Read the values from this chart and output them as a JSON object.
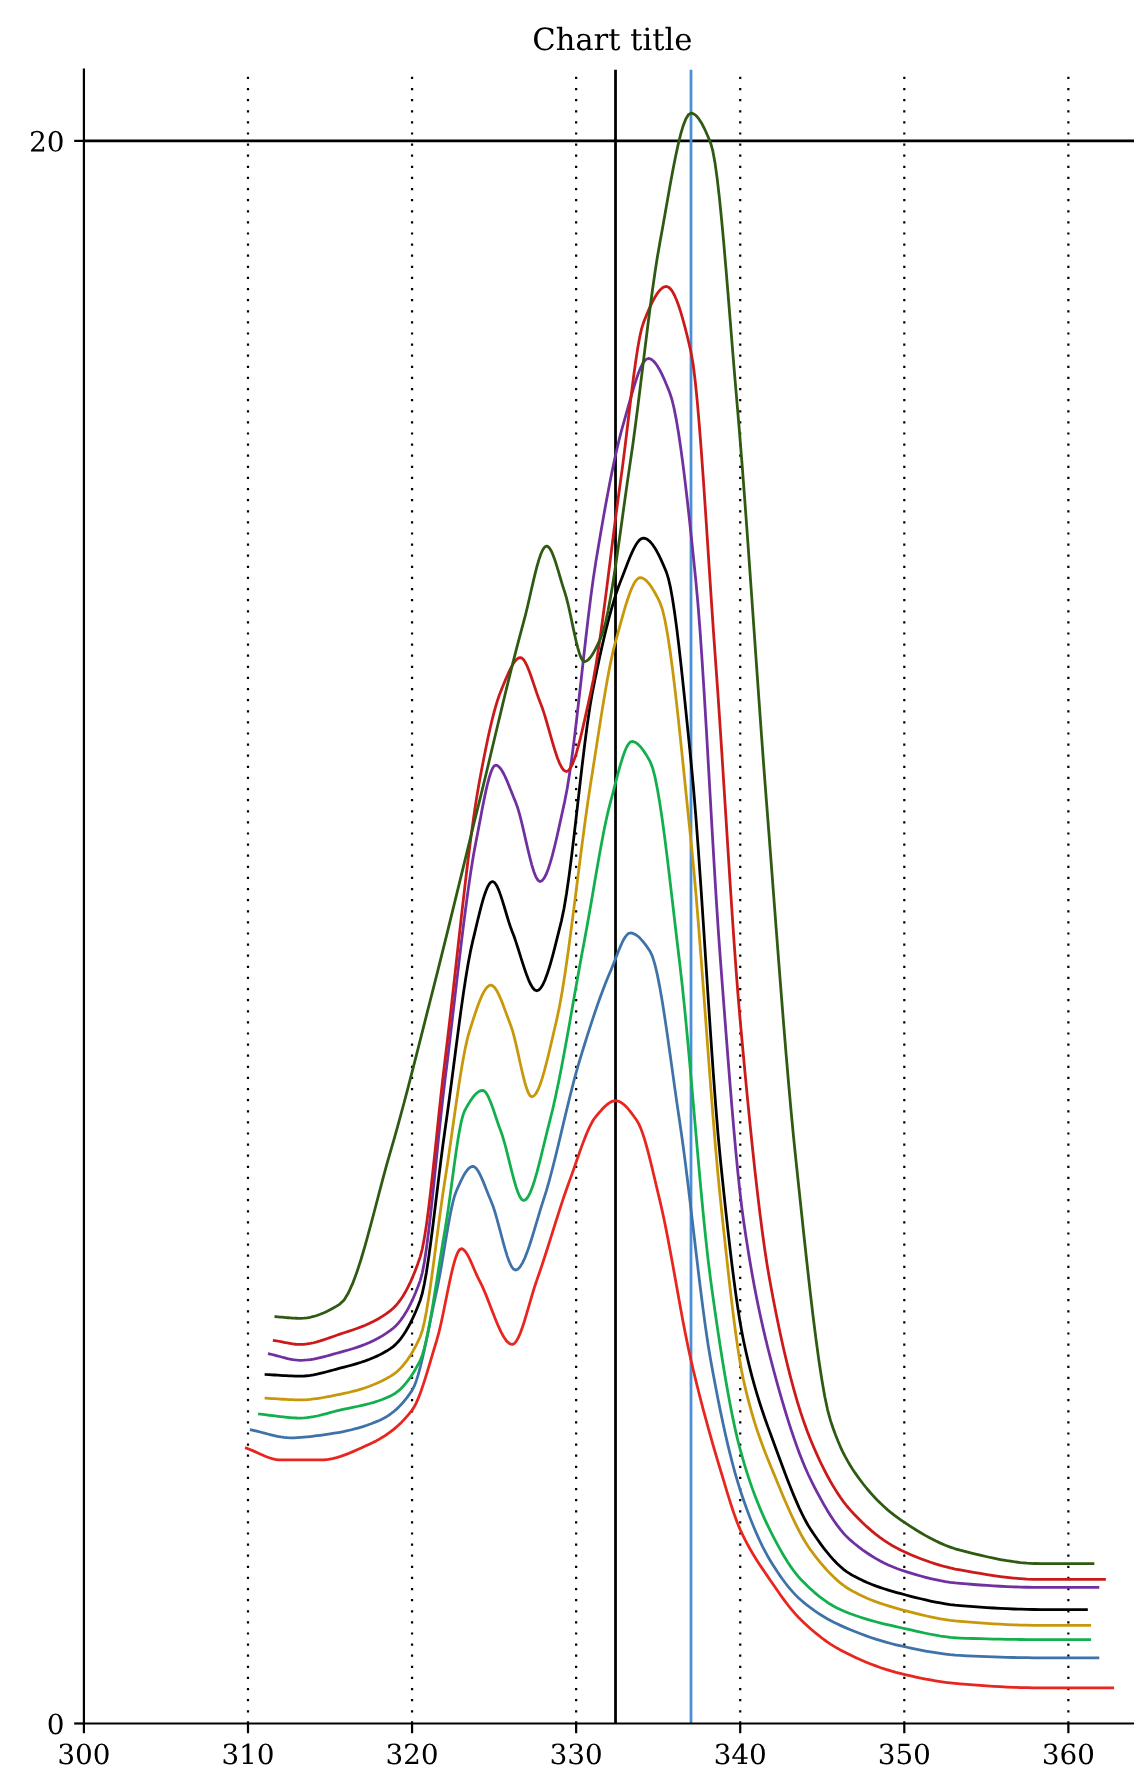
{
  "chart_data": {
    "type": "line",
    "title": "Chart title",
    "xlim": [
      300,
      364
    ],
    "ylim": [
      0,
      20.9
    ],
    "xticks": [
      300,
      310,
      320,
      330,
      340,
      350,
      360
    ],
    "yticks": [
      0,
      20
    ],
    "grid": "x",
    "line_style": "solid",
    "marker": "none",
    "ref_lines": [
      {
        "axis": "y",
        "value": 20,
        "label": null,
        "color": "#000000"
      },
      {
        "axis": "x",
        "value": 332.4,
        "label": null,
        "color": "#000000"
      },
      {
        "axis": "x",
        "value": 337.0,
        "label": null,
        "color": "#4a90d9"
      }
    ],
    "series": [
      {
        "color": "#e8251f",
        "x": [
          309.9,
          312.0,
          314.4,
          317.4,
          320.0,
          321.5,
          323.0,
          324.1,
          326.1,
          327.6,
          329.6,
          331.2,
          332.4,
          333.7,
          335.1,
          337.0,
          338.8,
          340.0,
          341.8,
          343.7,
          346.1,
          349.8,
          353.4,
          358.3,
          362.7
        ],
        "values": [
          3.48,
          3.33,
          3.33,
          3.53,
          3.96,
          4.84,
          6.0,
          5.6,
          4.79,
          5.6,
          6.86,
          7.67,
          7.87,
          7.62,
          6.61,
          4.59,
          3.2,
          2.45,
          1.82,
          1.31,
          0.93,
          0.63,
          0.5,
          0.45,
          0.45
        ]
      },
      {
        "color": "#3f72a8",
        "x": [
          310.2,
          312.6,
          315.0,
          318.0,
          320.0,
          321.5,
          322.7,
          323.7,
          324.8,
          326.3,
          328.0,
          330.2,
          332.1,
          333.3,
          334.5,
          336.3,
          338.2,
          340.0,
          341.8,
          343.7,
          346.1,
          349.8,
          353.4,
          358.3,
          361.8
        ],
        "values": [
          3.71,
          3.61,
          3.66,
          3.83,
          4.21,
          5.47,
          6.73,
          7.04,
          6.61,
          5.73,
          6.61,
          8.37,
          9.51,
          9.99,
          9.76,
          7.62,
          4.59,
          2.95,
          2.07,
          1.56,
          1.24,
          0.98,
          0.86,
          0.83,
          0.83
        ]
      },
      {
        "color": "#12b04c",
        "x": [
          310.7,
          313.2,
          315.6,
          318.7,
          320.5,
          322.0,
          323.2,
          324.3,
          325.4,
          326.8,
          328.4,
          330.5,
          332.1,
          333.4,
          334.5,
          336.3,
          338.2,
          340.0,
          341.8,
          343.7,
          346.1,
          349.8,
          353.4,
          358.3,
          361.3
        ],
        "values": [
          3.91,
          3.86,
          3.96,
          4.14,
          4.59,
          6.23,
          7.74,
          8.0,
          7.49,
          6.61,
          7.62,
          9.89,
          11.65,
          12.41,
          12.16,
          9.63,
          5.6,
          3.46,
          2.45,
          1.82,
          1.44,
          1.21,
          1.08,
          1.06,
          1.06
        ]
      },
      {
        "color": "#c8980a",
        "x": [
          311.1,
          313.2,
          315.6,
          318.7,
          320.5,
          322.0,
          323.5,
          324.8,
          326.0,
          327.3,
          328.8,
          330.9,
          332.4,
          333.9,
          335.1,
          337.0,
          338.8,
          340.2,
          342.2,
          344.3,
          346.7,
          349.8,
          353.4,
          358.3,
          361.3
        ],
        "values": [
          4.11,
          4.09,
          4.16,
          4.39,
          4.89,
          6.86,
          8.75,
          9.33,
          8.83,
          7.92,
          8.88,
          11.9,
          13.67,
          14.48,
          14.17,
          11.15,
          6.61,
          4.34,
          3.08,
          2.19,
          1.69,
          1.44,
          1.29,
          1.24,
          1.24
        ]
      },
      {
        "color": "#000000",
        "x": [
          311.1,
          313.2,
          315.6,
          318.7,
          320.5,
          322.0,
          323.7,
          324.9,
          326.1,
          327.6,
          329.1,
          331.0,
          332.7,
          334.1,
          335.5,
          337.0,
          338.8,
          340.2,
          342.2,
          344.3,
          346.7,
          349.8,
          353.4,
          358.3,
          361.1
        ],
        "values": [
          4.41,
          4.39,
          4.49,
          4.74,
          5.35,
          7.49,
          9.89,
          10.64,
          10.01,
          9.26,
          10.14,
          13.04,
          14.43,
          14.98,
          14.55,
          12.16,
          7.11,
          4.84,
          3.46,
          2.45,
          1.89,
          1.64,
          1.49,
          1.44,
          1.44
        ]
      },
      {
        "color": "#7030a0",
        "x": [
          311.3,
          313.2,
          315.6,
          318.7,
          320.5,
          322.0,
          323.9,
          325.1,
          326.3,
          327.8,
          329.3,
          331.2,
          332.9,
          334.4,
          335.7,
          337.3,
          338.8,
          340.2,
          342.2,
          344.3,
          346.7,
          349.8,
          353.4,
          358.3,
          361.8
        ],
        "values": [
          4.67,
          4.59,
          4.69,
          4.97,
          5.6,
          8.12,
          11.15,
          12.11,
          11.65,
          10.64,
          11.65,
          14.68,
          16.44,
          17.25,
          16.82,
          14.43,
          9.63,
          6.36,
          4.34,
          3.08,
          2.32,
          1.94,
          1.77,
          1.72,
          1.72
        ]
      },
      {
        "color": "#cc1a1a",
        "x": [
          311.6,
          313.2,
          315.6,
          318.7,
          320.5,
          322.0,
          324.1,
          325.4,
          326.6,
          327.8,
          329.4,
          330.9,
          332.7,
          334.1,
          335.5,
          337.0,
          338.5,
          340.0,
          341.8,
          344.3,
          346.7,
          349.8,
          353.4,
          358.3,
          362.2
        ],
        "values": [
          4.84,
          4.79,
          4.92,
          5.22,
          5.9,
          8.37,
          11.9,
          13.04,
          13.47,
          12.91,
          12.03,
          13.04,
          15.69,
          17.7,
          18.16,
          17.33,
          13.42,
          8.88,
          5.6,
          3.58,
          2.7,
          2.19,
          1.94,
          1.82,
          1.82
        ]
      },
      {
        "color": "#2f5a12",
        "x": [
          311.7,
          313.2,
          315.6,
          318.7,
          321.1,
          324.1,
          326.8,
          328.2,
          329.3,
          330.5,
          331.5,
          333.3,
          335.1,
          337.0,
          338.2,
          339.8,
          341.6,
          343.4,
          345.5,
          347.3,
          349.8,
          353.4,
          358.3,
          361.5
        ],
        "values": [
          5.14,
          5.12,
          5.3,
          7.24,
          9.13,
          11.65,
          13.92,
          14.88,
          14.3,
          13.42,
          13.72,
          15.94,
          18.71,
          20.35,
          19.97,
          16.7,
          11.65,
          7.11,
          3.83,
          3.08,
          2.57,
          2.19,
          2.02,
          2.02
        ]
      }
    ]
  }
}
